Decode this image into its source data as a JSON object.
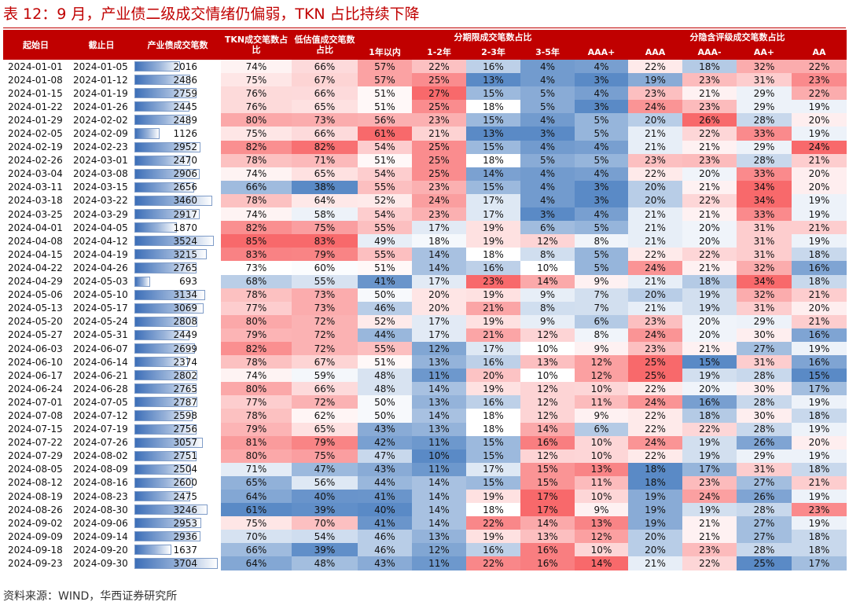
{
  "title": "表 12：9 月，产业债二级成交情绪仍偏弱，TKN 占比持续下降",
  "source": "资料来源：WIND，华西证券研究所",
  "headers": {
    "start": "起始日",
    "end": "截止日",
    "count": "产业债成交笔数",
    "tkn": "TKN成交笔数占比",
    "low": "低估值成交笔数占比",
    "tenor_group": "分期限成交笔数占比",
    "rating_group": "分隐含评级成交笔数占比",
    "tenors": [
      "1年以内",
      "1-2年",
      "2-3年",
      "3-5年",
      "AAA+"
    ],
    "ratings": [
      "AAA",
      "AAA-",
      "AA+",
      "AA"
    ]
  },
  "colors": {
    "header": "#C00000"
  },
  "rows": [
    [
      "2024-01-01",
      "2024-01-05",
      2016,
      "74%",
      "66%",
      "57%",
      "22%",
      "16%",
      "4%",
      "4%",
      "22%",
      "18%",
      "32%",
      "22%"
    ],
    [
      "2024-01-08",
      "2024-01-12",
      2486,
      "75%",
      "67%",
      "57%",
      "25%",
      "13%",
      "4%",
      "3%",
      "19%",
      "23%",
      "31%",
      "23%"
    ],
    [
      "2024-01-15",
      "2024-01-19",
      2759,
      "76%",
      "66%",
      "51%",
      "27%",
      "15%",
      "5%",
      "4%",
      "23%",
      "21%",
      "29%",
      "22%"
    ],
    [
      "2024-01-22",
      "2024-01-26",
      2445,
      "76%",
      "65%",
      "51%",
      "25%",
      "18%",
      "5%",
      "3%",
      "24%",
      "23%",
      "29%",
      "19%"
    ],
    [
      "2024-01-29",
      "2024-02-02",
      2489,
      "80%",
      "73%",
      "56%",
      "23%",
      "15%",
      "4%",
      "5%",
      "20%",
      "26%",
      "28%",
      "20%"
    ],
    [
      "2024-02-05",
      "2024-02-09",
      1126,
      "75%",
      "66%",
      "61%",
      "21%",
      "13%",
      "3%",
      "5%",
      "21%",
      "22%",
      "33%",
      "19%"
    ],
    [
      "2024-02-19",
      "2024-02-23",
      2952,
      "82%",
      "82%",
      "54%",
      "25%",
      "15%",
      "4%",
      "4%",
      "21%",
      "21%",
      "29%",
      "24%"
    ],
    [
      "2024-02-26",
      "2024-03-01",
      2470,
      "78%",
      "71%",
      "51%",
      "25%",
      "18%",
      "5%",
      "5%",
      "23%",
      "23%",
      "28%",
      "21%"
    ],
    [
      "2024-03-04",
      "2024-03-08",
      2906,
      "74%",
      "65%",
      "54%",
      "25%",
      "14%",
      "4%",
      "4%",
      "22%",
      "20%",
      "33%",
      "20%"
    ],
    [
      "2024-03-11",
      "2024-03-15",
      2656,
      "66%",
      "38%",
      "55%",
      "23%",
      "15%",
      "4%",
      "3%",
      "20%",
      "21%",
      "34%",
      "20%"
    ],
    [
      "2024-03-18",
      "2024-03-22",
      3460,
      "78%",
      "64%",
      "52%",
      "24%",
      "17%",
      "4%",
      "3%",
      "20%",
      "22%",
      "34%",
      "19%"
    ],
    [
      "2024-03-25",
      "2024-03-29",
      2917,
      "74%",
      "58%",
      "54%",
      "23%",
      "17%",
      "3%",
      "4%",
      "21%",
      "21%",
      "33%",
      "19%"
    ],
    [
      "2024-04-01",
      "2024-04-05",
      1870,
      "82%",
      "75%",
      "55%",
      "17%",
      "19%",
      "6%",
      "5%",
      "21%",
      "20%",
      "31%",
      "21%"
    ],
    [
      "2024-04-08",
      "2024-04-12",
      3524,
      "85%",
      "83%",
      "49%",
      "18%",
      "19%",
      "12%",
      "8%",
      "21%",
      "20%",
      "31%",
      "19%"
    ],
    [
      "2024-04-15",
      "2024-04-19",
      3215,
      "83%",
      "79%",
      "55%",
      "14%",
      "18%",
      "8%",
      "5%",
      "22%",
      "22%",
      "31%",
      "18%"
    ],
    [
      "2024-04-22",
      "2024-04-26",
      2765,
      "73%",
      "60%",
      "51%",
      "14%",
      "16%",
      "10%",
      "5%",
      "24%",
      "21%",
      "32%",
      "16%"
    ],
    [
      "2024-04-29",
      "2024-05-03",
      693,
      "68%",
      "55%",
      "41%",
      "17%",
      "23%",
      "14%",
      "9%",
      "21%",
      "18%",
      "34%",
      "18%"
    ],
    [
      "2024-05-06",
      "2024-05-10",
      3134,
      "78%",
      "73%",
      "50%",
      "20%",
      "19%",
      "9%",
      "7%",
      "20%",
      "19%",
      "32%",
      "21%"
    ],
    [
      "2024-05-13",
      "2024-05-17",
      3069,
      "77%",
      "73%",
      "46%",
      "20%",
      "21%",
      "8%",
      "7%",
      "21%",
      "19%",
      "31%",
      "20%"
    ],
    [
      "2024-05-20",
      "2024-05-24",
      2808,
      "80%",
      "72%",
      "52%",
      "17%",
      "19%",
      "9%",
      "6%",
      "23%",
      "20%",
      "29%",
      "21%"
    ],
    [
      "2024-05-27",
      "2024-05-31",
      2449,
      "79%",
      "72%",
      "44%",
      "17%",
      "21%",
      "12%",
      "8%",
      "24%",
      "20%",
      "30%",
      "16%"
    ],
    [
      "2024-06-03",
      "2024-06-07",
      2699,
      "82%",
      "72%",
      "55%",
      "12%",
      "17%",
      "10%",
      "9%",
      "23%",
      "21%",
      "27%",
      "19%"
    ],
    [
      "2024-06-10",
      "2024-06-14",
      2374,
      "78%",
      "67%",
      "51%",
      "13%",
      "16%",
      "13%",
      "12%",
      "25%",
      "15%",
      "31%",
      "16%"
    ],
    [
      "2024-06-17",
      "2024-06-21",
      2802,
      "74%",
      "59%",
      "48%",
      "11%",
      "20%",
      "10%",
      "12%",
      "25%",
      "19%",
      "28%",
      "15%"
    ],
    [
      "2024-06-24",
      "2024-06-28",
      2765,
      "80%",
      "66%",
      "48%",
      "14%",
      "19%",
      "12%",
      "10%",
      "22%",
      "20%",
      "30%",
      "17%"
    ],
    [
      "2024-07-01",
      "2024-07-05",
      2787,
      "77%",
      "72%",
      "50%",
      "13%",
      "16%",
      "12%",
      "11%",
      "24%",
      "16%",
      "28%",
      "19%"
    ],
    [
      "2024-07-08",
      "2024-07-12",
      2598,
      "78%",
      "62%",
      "50%",
      "14%",
      "18%",
      "12%",
      "9%",
      "22%",
      "18%",
      "30%",
      "18%"
    ],
    [
      "2024-07-15",
      "2024-07-19",
      2756,
      "79%",
      "65%",
      "43%",
      "13%",
      "18%",
      "14%",
      "6%",
      "22%",
      "22%",
      "28%",
      "19%"
    ],
    [
      "2024-07-22",
      "2024-07-26",
      3057,
      "81%",
      "79%",
      "42%",
      "11%",
      "15%",
      "16%",
      "10%",
      "24%",
      "19%",
      "26%",
      "20%"
    ],
    [
      "2024-07-29",
      "2024-08-02",
      2751,
      "80%",
      "75%",
      "47%",
      "10%",
      "15%",
      "12%",
      "10%",
      "22%",
      "19%",
      "29%",
      "19%"
    ],
    [
      "2024-08-05",
      "2024-08-09",
      2504,
      "71%",
      "47%",
      "43%",
      "11%",
      "17%",
      "15%",
      "13%",
      "18%",
      "17%",
      "31%",
      "18%"
    ],
    [
      "2024-08-12",
      "2024-08-16",
      2600,
      "65%",
      "56%",
      "44%",
      "14%",
      "15%",
      "15%",
      "11%",
      "18%",
      "23%",
      "27%",
      "21%"
    ],
    [
      "2024-08-19",
      "2024-08-23",
      2475,
      "64%",
      "40%",
      "41%",
      "14%",
      "19%",
      "17%",
      "10%",
      "19%",
      "24%",
      "26%",
      "19%"
    ],
    [
      "2024-08-26",
      "2024-08-30",
      3246,
      "61%",
      "39%",
      "40%",
      "14%",
      "18%",
      "17%",
      "9%",
      "19%",
      "19%",
      "28%",
      "23%"
    ],
    [
      "2024-09-02",
      "2024-09-06",
      2953,
      "75%",
      "70%",
      "41%",
      "14%",
      "22%",
      "14%",
      "13%",
      "19%",
      "21%",
      "27%",
      "19%"
    ],
    [
      "2024-09-09",
      "2024-09-14",
      2936,
      "70%",
      "54%",
      "46%",
      "13%",
      "19%",
      "13%",
      "12%",
      "20%",
      "21%",
      "27%",
      "18%"
    ],
    [
      "2024-09-18",
      "2024-09-20",
      1637,
      "66%",
      "39%",
      "46%",
      "12%",
      "16%",
      "16%",
      "10%",
      "20%",
      "23%",
      "28%",
      "18%"
    ],
    [
      "2024-09-23",
      "2024-09-30",
      3704,
      "64%",
      "48%",
      "43%",
      "11%",
      "22%",
      "16%",
      "14%",
      "21%",
      "22%",
      "25%",
      "17%"
    ]
  ]
}
